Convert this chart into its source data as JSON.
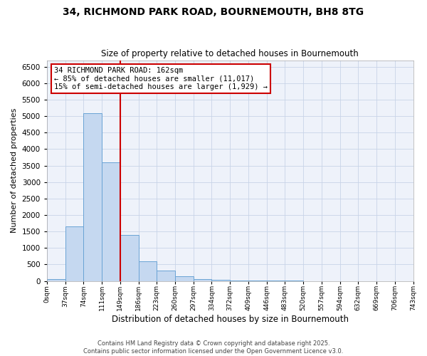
{
  "title": "34, RICHMOND PARK ROAD, BOURNEMOUTH, BH8 8TG",
  "subtitle": "Size of property relative to detached houses in Bournemouth",
  "xlabel": "Distribution of detached houses by size in Bournemouth",
  "ylabel": "Number of detached properties",
  "footer_line1": "Contains HM Land Registry data © Crown copyright and database right 2025.",
  "footer_line2": "Contains public sector information licensed under the Open Government Licence v3.0.",
  "bin_labels": [
    "0sqm",
    "37sqm",
    "74sqm",
    "111sqm",
    "149sqm",
    "186sqm",
    "223sqm",
    "260sqm",
    "297sqm",
    "334sqm",
    "372sqm",
    "409sqm",
    "446sqm",
    "483sqm",
    "520sqm",
    "557sqm",
    "594sqm",
    "632sqm",
    "669sqm",
    "706sqm",
    "743sqm"
  ],
  "bar_values": [
    50,
    1650,
    5100,
    3600,
    1400,
    600,
    320,
    145,
    60,
    30,
    10,
    5,
    2,
    1,
    0,
    0,
    0,
    0,
    0,
    0
  ],
  "bar_color": "#c5d8f0",
  "bar_edge_color": "#6aa3d5",
  "grid_color": "#c8d4e8",
  "background_color": "#eef2fa",
  "vline_x": 4.0,
  "vline_color": "#cc0000",
  "annotation_text": "34 RICHMOND PARK ROAD: 162sqm\n← 85% of detached houses are smaller (11,017)\n15% of semi-detached houses are larger (1,929) →",
  "annotation_box_color": "#cc0000",
  "annotation_text_color": "#000000",
  "ylim": [
    0,
    6700
  ],
  "yticks": [
    0,
    500,
    1000,
    1500,
    2000,
    2500,
    3000,
    3500,
    4000,
    4500,
    5000,
    5500,
    6000,
    6500
  ]
}
